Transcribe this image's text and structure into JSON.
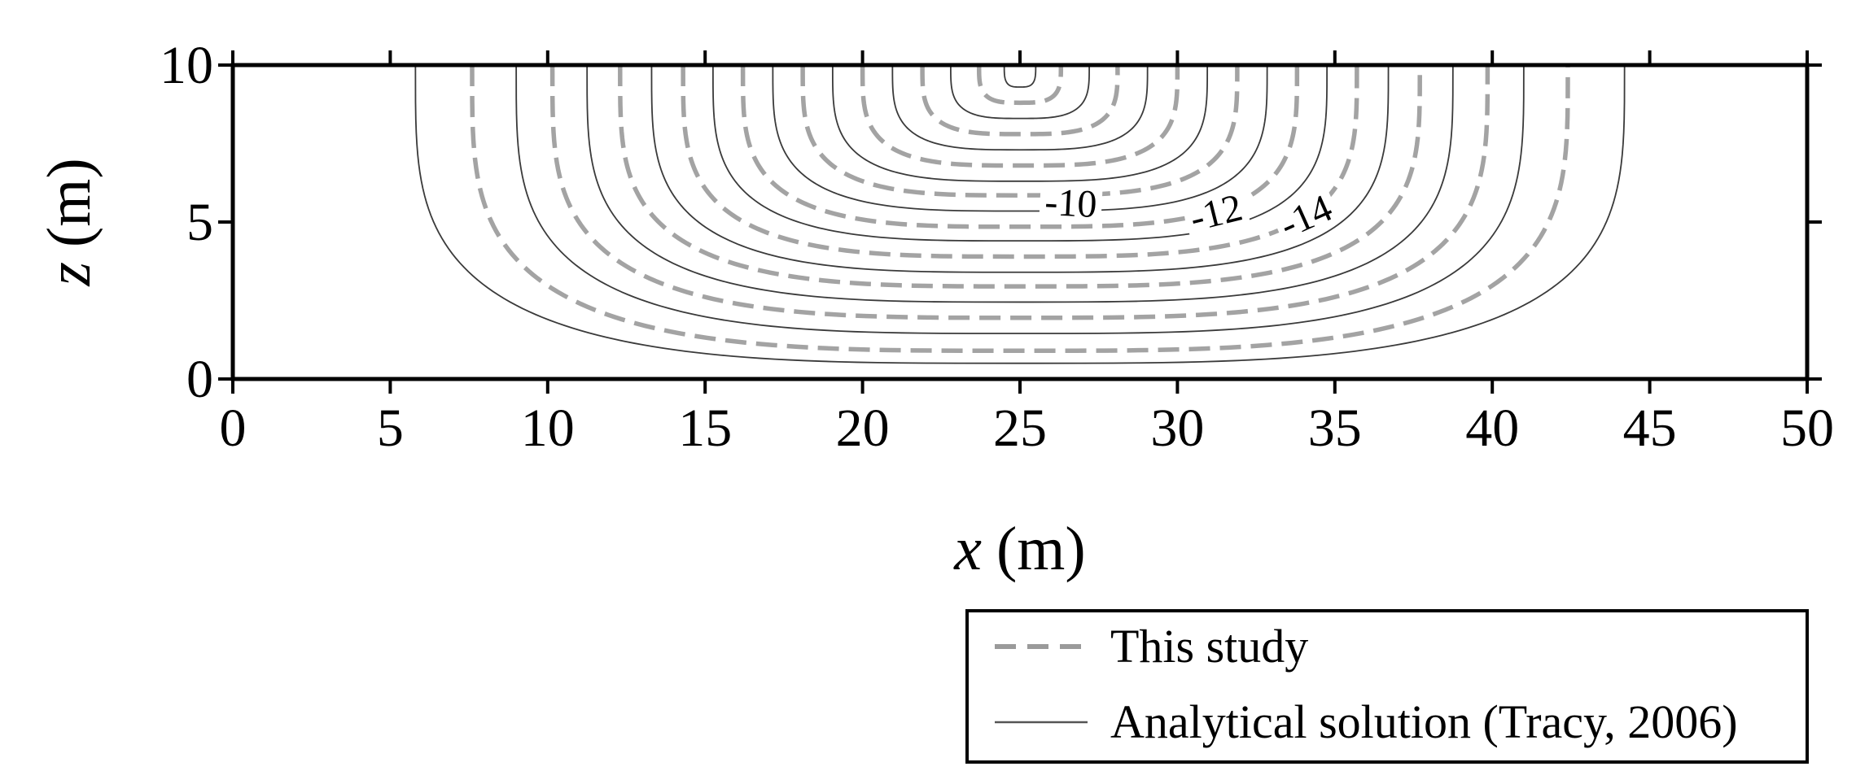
{
  "chart_data": {
    "type": "contour",
    "xlabel_var": "x",
    "xlabel_unit": "(m)",
    "ylabel_var": "z",
    "ylabel_unit": "(m)",
    "xlim": [
      0,
      50
    ],
    "ylim": [
      0,
      10
    ],
    "x_ticks": [
      0,
      5,
      10,
      15,
      20,
      25,
      30,
      35,
      40,
      45,
      50
    ],
    "y_ticks": [
      0,
      5,
      10
    ],
    "x_tick_labels": [
      "0",
      "5",
      "10",
      "15",
      "20",
      "25",
      "30",
      "35",
      "40",
      "45",
      "50"
    ],
    "y_tick_labels": [
      "0",
      "5",
      "10"
    ],
    "center_x": 25,
    "contours": [
      {
        "half_width": 19.2,
        "bottom_z": 0.5,
        "dashed": false
      },
      {
        "half_width": 17.4,
        "bottom_z": 0.9,
        "dashed": true
      },
      {
        "half_width": 16.0,
        "bottom_z": 1.45,
        "dashed": false
      },
      {
        "half_width": 14.85,
        "bottom_z": 1.95,
        "dashed": true
      },
      {
        "half_width": 13.75,
        "bottom_z": 2.45,
        "dashed": false
      },
      {
        "half_width": 12.7,
        "bottom_z": 2.95,
        "dashed": true
      },
      {
        "half_width": 11.7,
        "bottom_z": 3.4,
        "dashed": false
      },
      {
        "half_width": 10.7,
        "bottom_z": 3.9,
        "dashed": true
      },
      {
        "half_width": 9.75,
        "bottom_z": 4.4,
        "dashed": false
      },
      {
        "half_width": 8.8,
        "bottom_z": 4.85,
        "dashed": true
      },
      {
        "half_width": 7.85,
        "bottom_z": 5.35,
        "dashed": false
      },
      {
        "half_width": 6.9,
        "bottom_z": 5.85,
        "dashed": true
      },
      {
        "half_width": 5.95,
        "bottom_z": 6.3,
        "dashed": false
      },
      {
        "half_width": 5.0,
        "bottom_z": 6.8,
        "dashed": true
      },
      {
        "half_width": 4.05,
        "bottom_z": 7.3,
        "dashed": false
      },
      {
        "half_width": 3.1,
        "bottom_z": 7.8,
        "dashed": true
      },
      {
        "half_width": 2.2,
        "bottom_z": 8.3,
        "dashed": false
      },
      {
        "half_width": 1.3,
        "bottom_z": 8.8,
        "dashed": true
      },
      {
        "half_width": 0.5,
        "bottom_z": 9.3,
        "dashed": false
      }
    ],
    "contour_labels": [
      {
        "text": "-10",
        "x": 26.6,
        "z": 5.3,
        "angle": 3
      },
      {
        "text": "-12",
        "x": 31.3,
        "z": 5.0,
        "angle": -14
      },
      {
        "text": "-14",
        "x": 34.2,
        "z": 4.9,
        "angle": -24
      }
    ],
    "legend": {
      "position": "bottom-right",
      "entries": [
        {
          "label": "This study",
          "style": "dashed",
          "color": "#9a9a9a"
        },
        {
          "label": "Analytical solution (Tracy, 2006)",
          "style": "solid",
          "color": "#555555"
        }
      ]
    },
    "colors": {
      "dashed": "#a3a3a3",
      "solid": "#3a3a3a",
      "axis": "#000000"
    }
  }
}
